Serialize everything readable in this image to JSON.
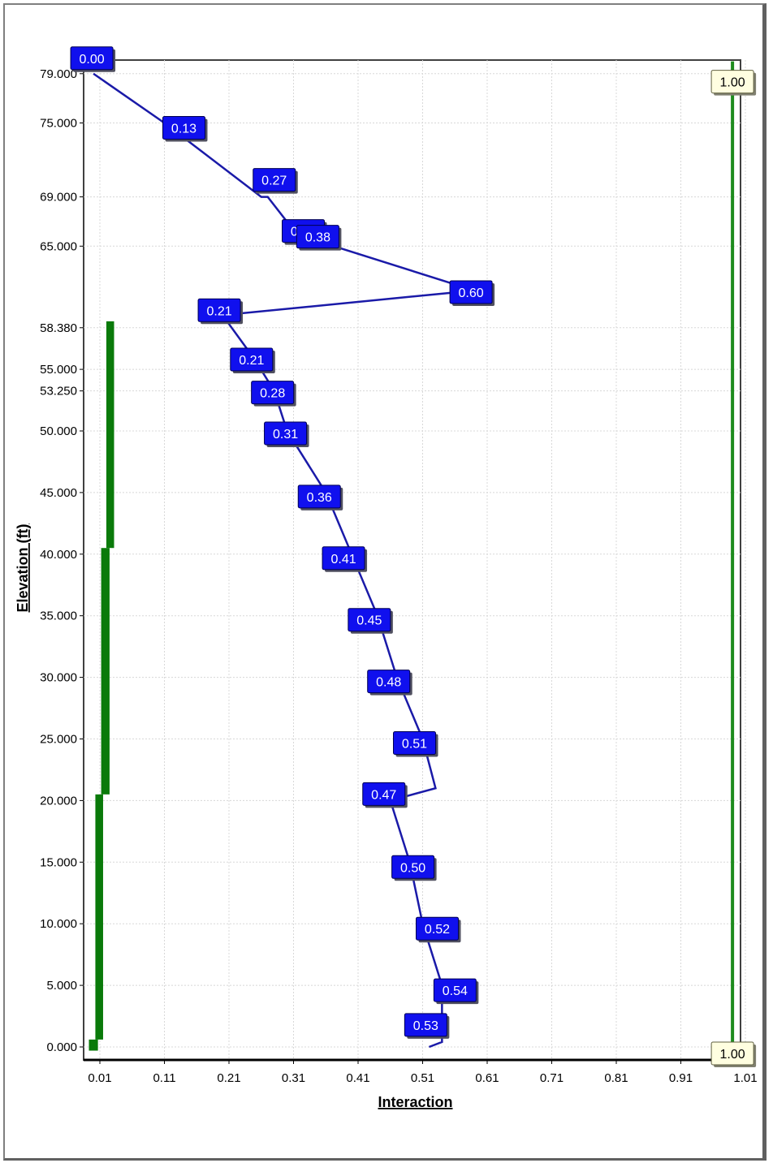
{
  "chart_data": {
    "type": "line",
    "xlabel": "Interaction",
    "ylabel": "Elevation (ft)",
    "xlim": [
      0.0,
      1.01
    ],
    "ylim": [
      -0.5,
      80
    ],
    "x_ticks": [
      "0.01",
      "0.11",
      "0.21",
      "0.31",
      "0.41",
      "0.51",
      "0.61",
      "0.71",
      "0.81",
      "0.91",
      "1.01"
    ],
    "y_ticks": [
      "0.000",
      "5.000",
      "10.000",
      "15.000",
      "20.000",
      "25.000",
      "30.000",
      "35.000",
      "40.000",
      "45.000",
      "50.000",
      "53.250",
      "55.000",
      "58.380",
      "65.000",
      "69.000",
      "75.000",
      "79.000"
    ],
    "grid": true,
    "series": [
      {
        "color": "#1a1aa8",
        "label_bg": "#1010ee",
        "points": [
          {
            "x": 0.0,
            "y": 79.0,
            "label": "0.00"
          },
          {
            "x": 0.11,
            "y": 75.0,
            "label": "0.13"
          },
          {
            "x": 0.26,
            "y": 69.0,
            "label": "0.27"
          },
          {
            "x": 0.27,
            "y": 69.0,
            "label": ""
          },
          {
            "x": 0.31,
            "y": 66.3,
            "label": "0.32"
          },
          {
            "x": 0.33,
            "y": 65.7,
            "label": "0.38"
          },
          {
            "x": 0.59,
            "y": 61.4,
            "label": "0.60"
          },
          {
            "x": 0.2,
            "y": 59.4,
            "label": "0.21"
          },
          {
            "x": 0.25,
            "y": 55.8,
            "label": "0.21"
          },
          {
            "x": 0.28,
            "y": 53.25,
            "label": "0.28"
          },
          {
            "x": 0.3,
            "y": 50.0,
            "label": "0.31"
          },
          {
            "x": 0.36,
            "y": 45.0,
            "label": "0.36"
          },
          {
            "x": 0.4,
            "y": 40.0,
            "label": "0.41"
          },
          {
            "x": 0.44,
            "y": 35.0,
            "label": "0.45"
          },
          {
            "x": 0.47,
            "y": 30.0,
            "label": "0.48"
          },
          {
            "x": 0.51,
            "y": 25.0,
            "label": "0.51"
          },
          {
            "x": 0.53,
            "y": 21.0,
            "label": ""
          },
          {
            "x": 0.46,
            "y": 20.0,
            "label": "0.47"
          },
          {
            "x": 0.49,
            "y": 15.0,
            "label": "0.50"
          },
          {
            "x": 0.51,
            "y": 10.0,
            "label": "0.52"
          },
          {
            "x": 0.54,
            "y": 5.0,
            "label": "0.54"
          },
          {
            "x": 0.54,
            "y": 0.4,
            "label": "0.53"
          },
          {
            "x": 0.52,
            "y": 0.0,
            "label": ""
          }
        ]
      }
    ],
    "bars": {
      "color": "#0a7a0a",
      "segments": [
        {
          "y0": 40.5,
          "y1": 58.9,
          "x0": 0.02,
          "x1": 0.032
        },
        {
          "y0": 20.5,
          "y1": 40.5,
          "x0": 0.012,
          "x1": 0.025
        },
        {
          "y0": 0.6,
          "y1": 20.5,
          "x0": 0.003,
          "x1": 0.015
        },
        {
          "y0": -0.3,
          "y1": 0.6,
          "x0": -0.007,
          "x1": 0.007
        }
      ]
    },
    "reference_line": {
      "x": 0.99,
      "y0": 0.0,
      "y1": 80.0,
      "color": "#1e8c1e",
      "labels": [
        "1.00",
        "1.00"
      ]
    }
  }
}
